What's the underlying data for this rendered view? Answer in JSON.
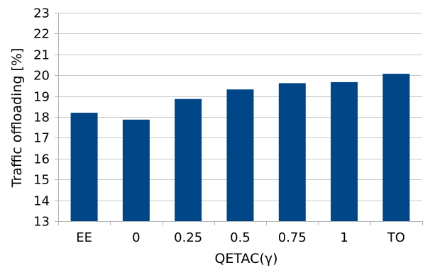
{
  "chart_data": {
    "type": "bar",
    "categories": [
      "EE",
      "0",
      "0.25",
      "0.5",
      "0.75",
      "1",
      "TO"
    ],
    "values": [
      18.2,
      17.87,
      18.86,
      19.32,
      19.62,
      19.67,
      20.07
    ],
    "xlabel": "QETAC(γ)",
    "ylabel": "Traffic offloading [%]",
    "ylim": [
      13,
      23
    ],
    "yticks": [
      13,
      14,
      15,
      16,
      17,
      18,
      19,
      20,
      21,
      22,
      23
    ],
    "grid": true,
    "bar_color": "#004586"
  }
}
